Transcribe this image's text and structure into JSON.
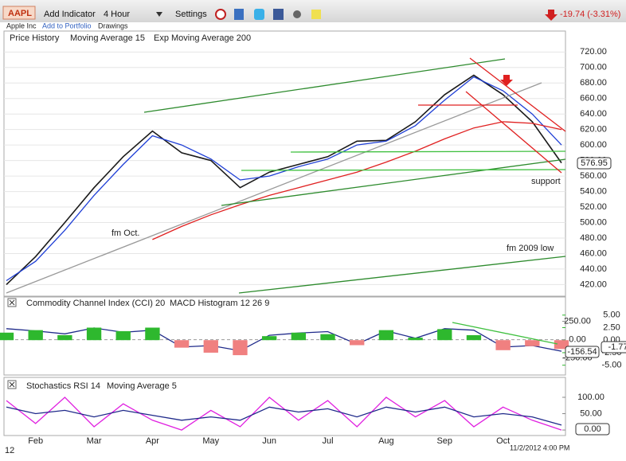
{
  "toolbar": {
    "symbol": "AAPL",
    "add_indicator": "Add Indicator",
    "interval": "4 Hour",
    "settings": "Settings",
    "change": "-19.74 (-3.31%)",
    "company": "Apple Inc",
    "add_to_portfolio": "Add to Portfolio",
    "drawings": "Drawings"
  },
  "chart_data": [
    {
      "type": "line",
      "series": [
        {
          "name": "Price History",
          "color": "#1a1a1a",
          "legend_color": "#2e8b2e",
          "values": [
            420,
            456,
            500,
            545,
            585,
            618,
            590,
            580,
            545,
            565,
            575,
            585,
            605,
            606,
            630,
            665,
            690,
            665,
            630,
            576.95
          ]
        },
        {
          "name": "Moving Average 15",
          "color": "#1f3fd6",
          "legend_color": "#1f3fd6",
          "values": [
            425,
            450,
            490,
            535,
            575,
            612,
            600,
            582,
            555,
            560,
            572,
            582,
            600,
            605,
            625,
            658,
            688,
            670,
            640,
            600
          ]
        },
        {
          "name": "Exp Moving Average 200",
          "color": "#e02020",
          "legend_color": "#e02020",
          "values": [
            null,
            null,
            null,
            null,
            null,
            478,
            495,
            510,
            523,
            535,
            545,
            555,
            565,
            578,
            592,
            608,
            622,
            630,
            628,
            620
          ]
        }
      ],
      "ylim": [
        405,
        746
      ],
      "yticks": [
        {
          "value": 420,
          "label": "420.00"
        },
        {
          "value": 440,
          "label": "440.00"
        },
        {
          "value": 460,
          "label": "460.00"
        },
        {
          "value": 480,
          "label": "480.00"
        },
        {
          "value": 500,
          "label": "500.00"
        },
        {
          "value": 520,
          "label": "520.00"
        },
        {
          "value": 540,
          "label": "540.00"
        },
        {
          "value": 560,
          "label": "560.00"
        },
        {
          "value": 580,
          "label": "580.00"
        },
        {
          "value": 600,
          "label": "600.00"
        },
        {
          "value": 620,
          "label": "620.00"
        },
        {
          "value": 640,
          "label": "640.00"
        },
        {
          "value": 660,
          "label": "660.00"
        },
        {
          "value": 680,
          "label": "680.00"
        },
        {
          "value": 700,
          "label": "700.00"
        },
        {
          "value": 720,
          "label": "720.00"
        }
      ],
      "grid": true,
      "last_labels": [
        "576.95"
      ],
      "annotations": [
        "fm Oct.",
        "support",
        "fm 2009 low"
      ]
    },
    {
      "type": "line",
      "series": [
        {
          "name": "Commodity Channel Index (CCI) 20",
          "color": "#1f2a8a",
          "legend_color": "#1f2a8a",
          "values": [
            150,
            120,
            80,
            160,
            100,
            130,
            -100,
            -80,
            -150,
            60,
            90,
            110,
            -60,
            120,
            20,
            150,
            130,
            -100,
            -80,
            -156.54
          ]
        },
        {
          "name": "MACD Histogram 12 26 9",
          "type": "bar",
          "axis": "y2",
          "color": "#2eb82e",
          "negative_color": "#f08080",
          "legend_color": "#2eb82e",
          "values": [
            1.5,
            2.0,
            1.0,
            2.5,
            1.8,
            2.5,
            -1.5,
            -2.5,
            -3.0,
            0.8,
            1.5,
            1.2,
            -1.0,
            2.0,
            0.5,
            2.2,
            1.0,
            -2.0,
            -1.2,
            -1.77
          ]
        }
      ],
      "ylim": [
        -470,
        560
      ],
      "yticks": [
        {
          "value": 250,
          "label": "250.00"
        },
        {
          "value": 0,
          "label": "0.00"
        },
        {
          "value": -250,
          "label": "-250.00"
        }
      ],
      "y2lim": [
        -6.8,
        8.3
      ],
      "y2ticks": [
        {
          "value": 5,
          "label": "5.00"
        },
        {
          "value": 2.5,
          "label": "2.50"
        },
        {
          "value": 0,
          "label": "0.00"
        },
        {
          "value": -2.5,
          "label": "-2.50"
        },
        {
          "value": -5,
          "label": "-5.00"
        }
      ],
      "last_labels": [
        "-156.54",
        "-1.77"
      ]
    },
    {
      "type": "line",
      "series": [
        {
          "name": "Stochastics RSI 14",
          "color": "#e020e0",
          "legend_color": "#e020e0",
          "values": [
            90,
            20,
            100,
            10,
            80,
            30,
            0,
            60,
            10,
            100,
            30,
            90,
            10,
            100,
            40,
            90,
            10,
            70,
            30,
            0
          ]
        },
        {
          "name": "Moving Average 5",
          "color": "#1f2a8a",
          "legend_color": "#1f2a8a",
          "values": [
            70,
            50,
            60,
            40,
            60,
            45,
            30,
            40,
            30,
            70,
            55,
            65,
            40,
            70,
            55,
            70,
            40,
            50,
            40,
            15
          ]
        }
      ],
      "ylim": [
        -12,
        156
      ],
      "yticks": [
        {
          "value": 100,
          "label": "100.00"
        },
        {
          "value": 50,
          "label": "50.00"
        },
        {
          "value": 0,
          "label": "0.00"
        }
      ],
      "categories": [
        null,
        "Feb",
        null,
        "Mar",
        null,
        "Apr",
        null,
        "May",
        null,
        "Jun",
        null,
        "Jul",
        null,
        "Aug",
        null,
        "Sep",
        null,
        "Oct",
        null,
        null
      ],
      "last_labels": [
        "0.00"
      ]
    }
  ],
  "footer": {
    "year": "12",
    "timestamp": "11/2/2012 4:00 PM"
  }
}
